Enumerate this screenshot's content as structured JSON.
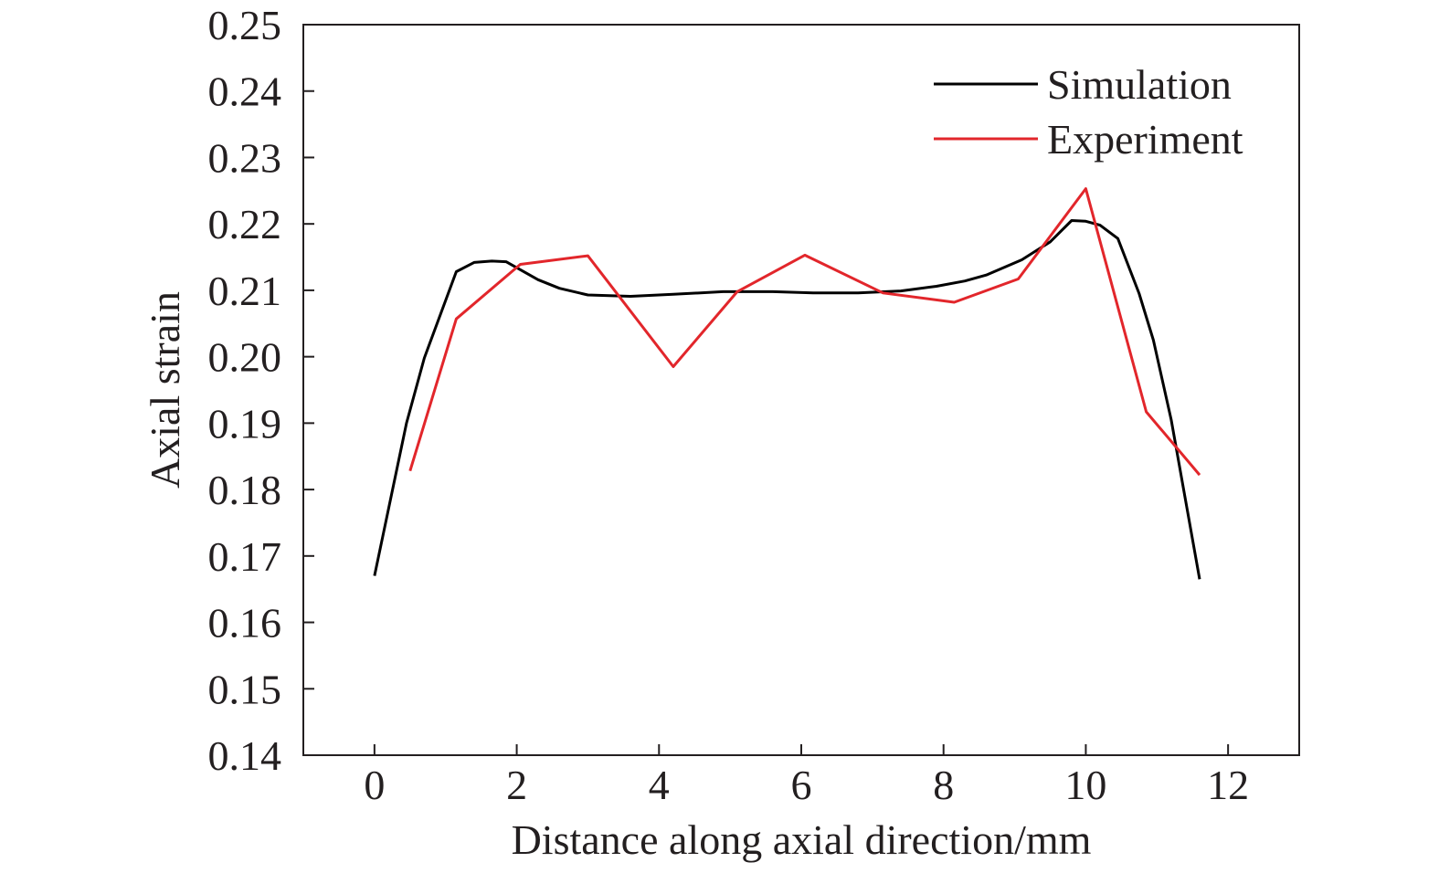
{
  "chart_data": {
    "type": "line",
    "title": "",
    "xlabel": "Distance along axial direction/mm",
    "ylabel": "Axial strain",
    "xlim": [
      -1,
      13
    ],
    "ylim": [
      0.14,
      0.25
    ],
    "xticks": [
      "0",
      "2",
      "4",
      "6",
      "8",
      "10",
      "12"
    ],
    "yticks": [
      "0.14",
      "0.15",
      "0.16",
      "0.17",
      "0.18",
      "0.19",
      "0.20",
      "0.21",
      "0.22",
      "0.23",
      "0.24",
      "0.25"
    ],
    "grid": false,
    "legend_position": "top-right",
    "series": [
      {
        "name": "Simulation",
        "color": "#000000",
        "x": [
          0,
          0.45,
          0.7,
          1.15,
          1.4,
          1.65,
          1.85,
          2.3,
          2.6,
          3.0,
          3.6,
          4.2,
          4.9,
          5.6,
          6.2,
          6.8,
          7.4,
          7.9,
          8.3,
          8.6,
          9.1,
          9.5,
          9.8,
          10.0,
          10.2,
          10.45,
          10.75,
          10.95,
          11.2,
          11.6
        ],
        "y": [
          0.167,
          0.19,
          0.1998,
          0.2128,
          0.2142,
          0.2144,
          0.2143,
          0.2116,
          0.2103,
          0.2093,
          0.2091,
          0.2094,
          0.2098,
          0.2098,
          0.2096,
          0.2096,
          0.2099,
          0.2106,
          0.2114,
          0.2123,
          0.2146,
          0.2173,
          0.2205,
          0.2204,
          0.2198,
          0.2178,
          0.2095,
          0.2025,
          0.1905,
          0.1665
        ]
      },
      {
        "name": "Experiment",
        "color": "#e2262b",
        "x": [
          0.5,
          1.15,
          2.05,
          3.0,
          4.2,
          5.1,
          6.05,
          7.15,
          8.15,
          9.05,
          10.0,
          10.85,
          11.6
        ],
        "y": [
          0.1828,
          0.2057,
          0.2139,
          0.2152,
          0.1985,
          0.2098,
          0.2153,
          0.2096,
          0.2082,
          0.2117,
          0.2253,
          0.1917,
          0.1822
        ]
      }
    ]
  }
}
